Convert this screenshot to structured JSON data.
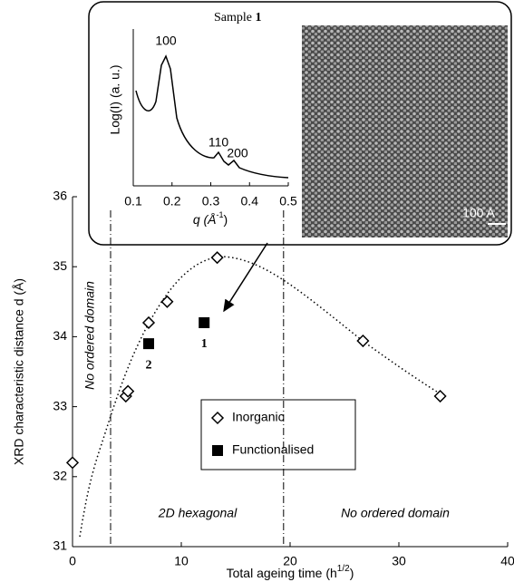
{
  "chart_data": [
    {
      "type": "scatter",
      "ylabel": "XRD characteristic distance d (Å)",
      "xlabel_parts": [
        "Total ageing time (h",
        "1/2",
        ")"
      ],
      "xlim": [
        0,
        40
      ],
      "xticks": [
        0,
        10,
        20,
        30,
        40
      ],
      "ylim": [
        31,
        36
      ],
      "yticks": [
        31,
        32,
        33,
        34,
        35,
        36
      ],
      "vlines": [
        3.5,
        19.4
      ],
      "series": [
        {
          "name": "Inorganic",
          "marker": "diamond",
          "color": "#000000",
          "x": [
            0,
            4.9,
            5.1,
            7,
            8.7,
            13.3,
            26.7,
            33.8
          ],
          "values": [
            32.2,
            33.15,
            33.22,
            34.2,
            34.5,
            35.13,
            33.94,
            33.15
          ]
        },
        {
          "name": "Functionalised",
          "marker": "square",
          "color": "#000000",
          "x": [
            7,
            12.1
          ],
          "values": [
            33.9,
            34.2
          ],
          "point_labels": [
            "2",
            "1"
          ]
        }
      ],
      "annotations": [
        "No ordered domain",
        "2D hexagonal",
        "No ordered domain"
      ]
    },
    {
      "type": "line",
      "title": "Sample ",
      "title_bold": "1",
      "ylabel": "Log(I) (a. u.)",
      "xlabel_parts": [
        "q  (Å",
        "-1",
        ")"
      ],
      "xlim": [
        0.1,
        0.5
      ],
      "xticks": [
        0.1,
        0.2,
        0.3,
        0.4,
        0.5
      ],
      "peak_labels": [
        "100",
        "110",
        "200"
      ],
      "scale_bar": "100 A"
    }
  ]
}
